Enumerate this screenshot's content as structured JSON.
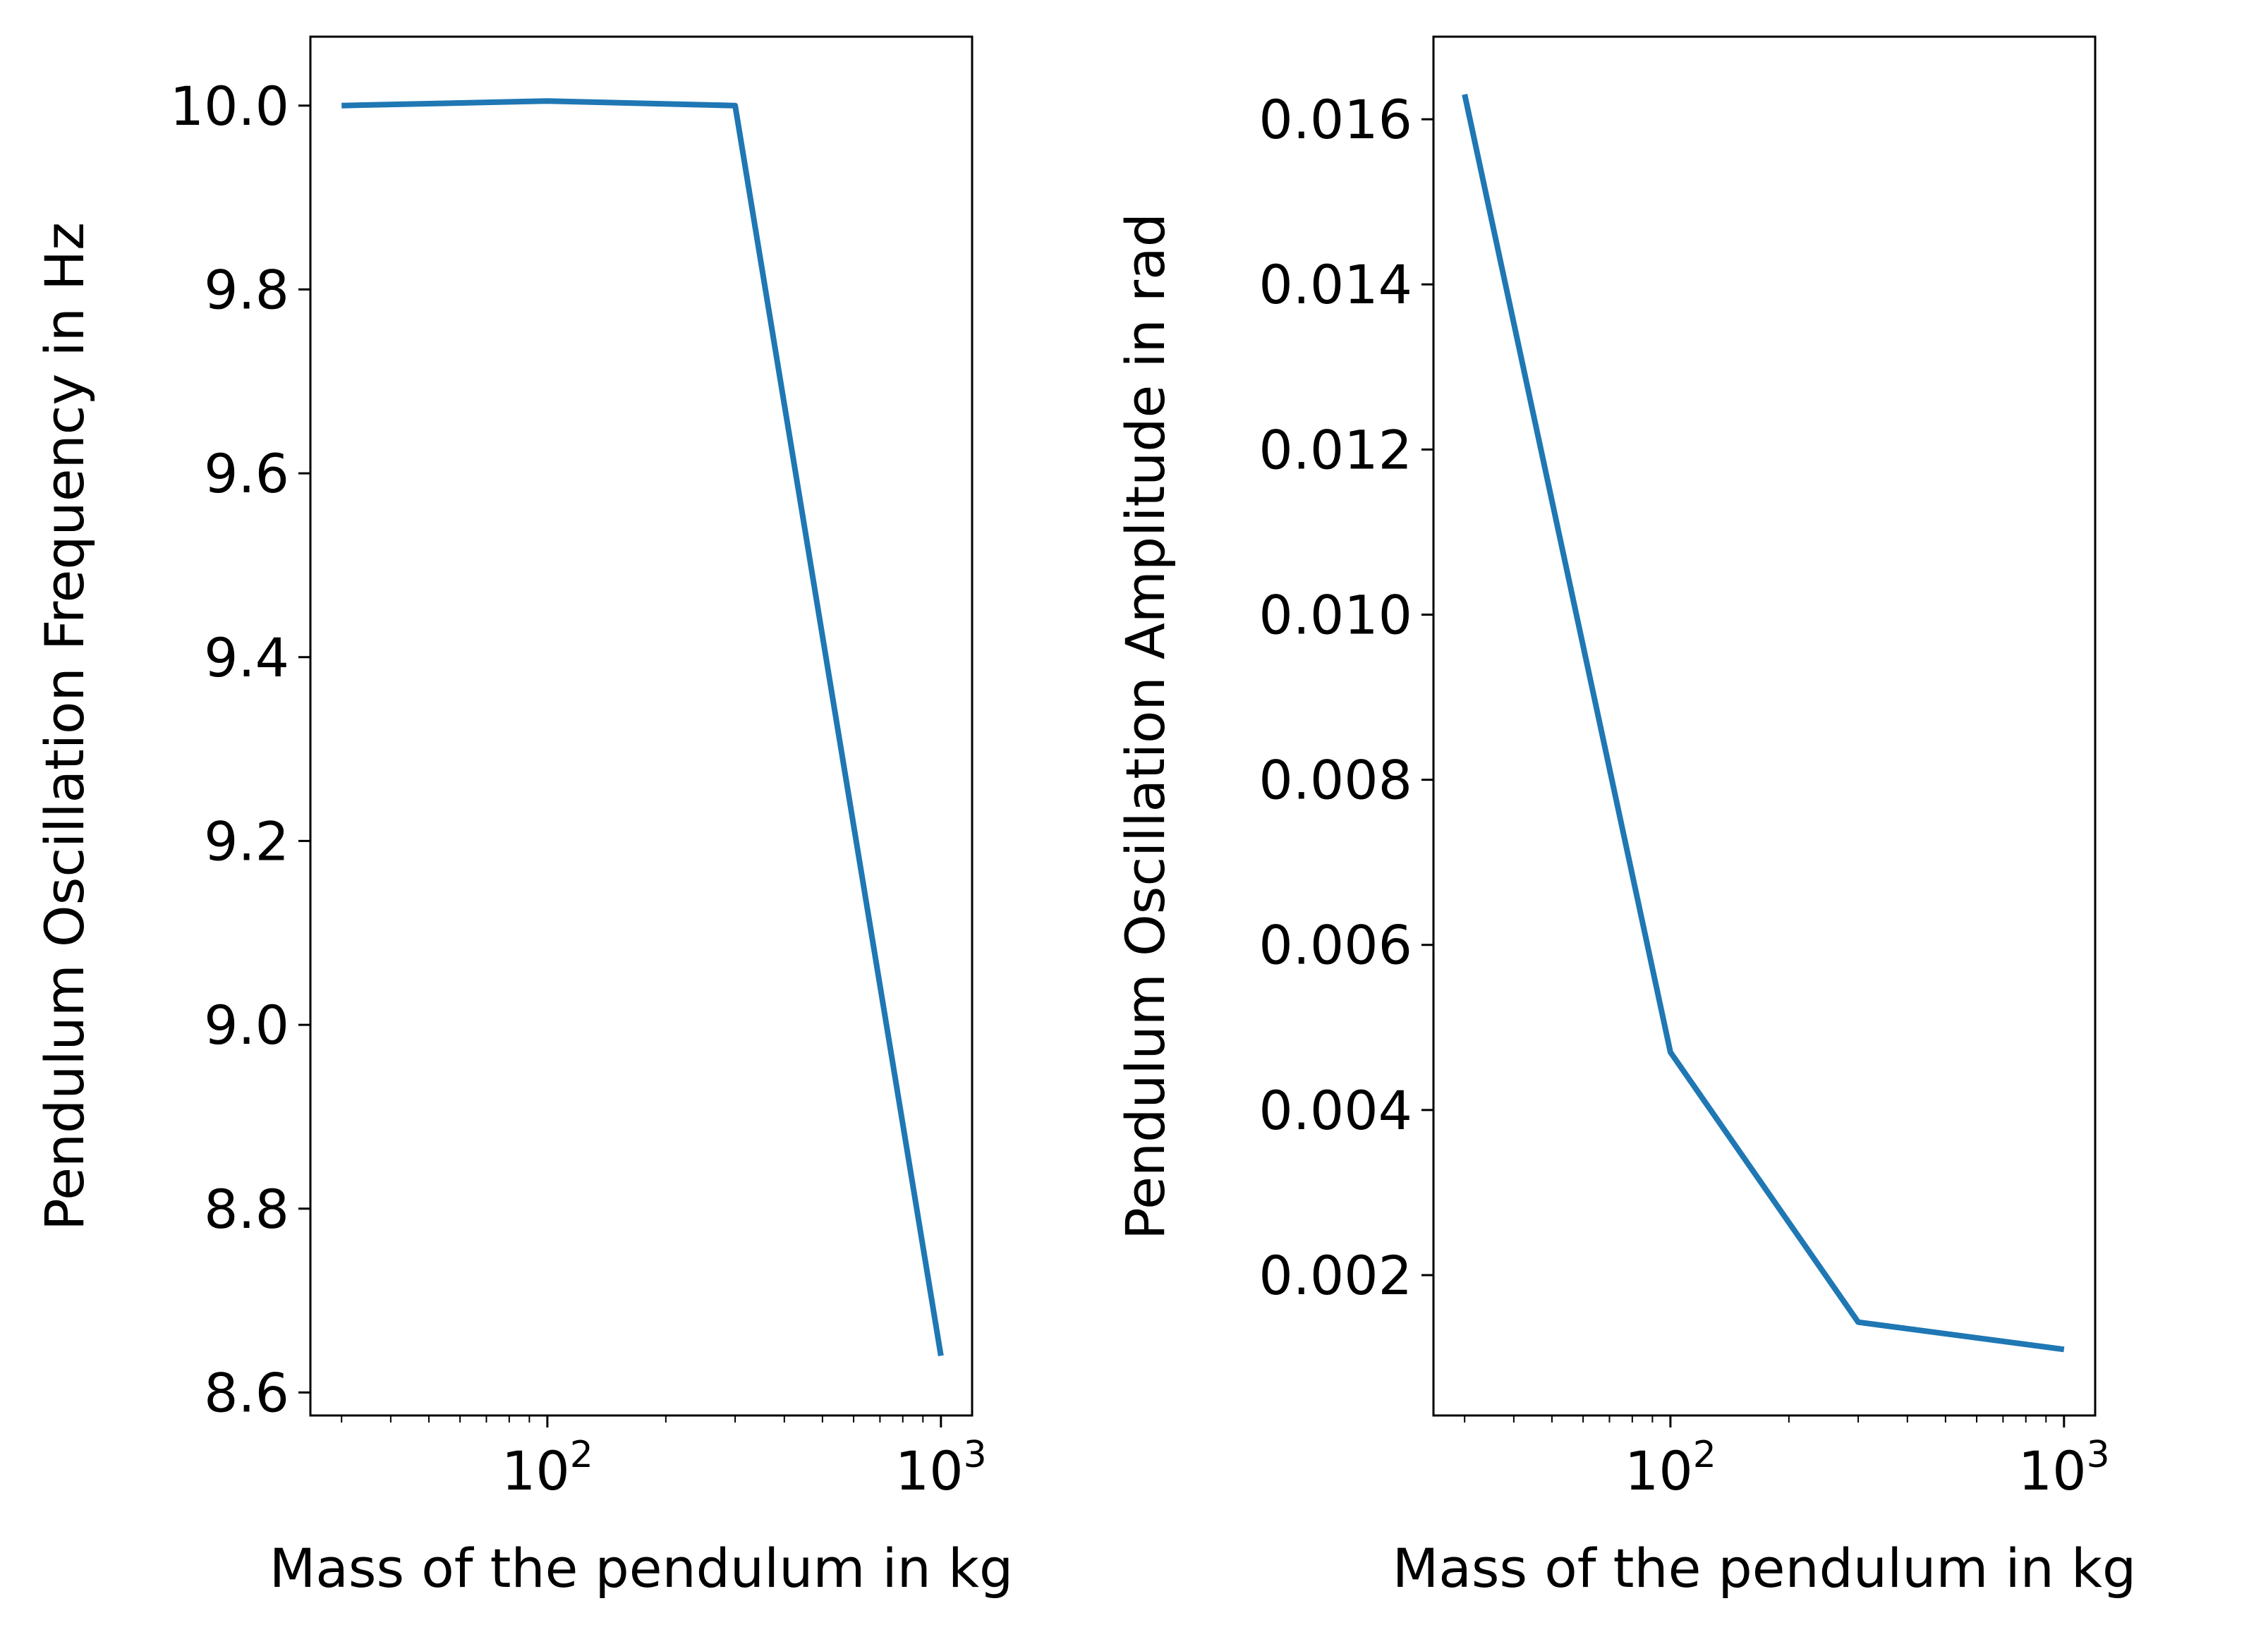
{
  "colors": {
    "line": "#1f77b4",
    "axes": "#000000",
    "background": "#ffffff"
  },
  "chart_data": [
    {
      "type": "line",
      "title": "",
      "xlabel": "Mass of the pendulum in kg",
      "ylabel": "Pendulum Oscillation Frequency in Hz",
      "xscale": "log",
      "xlim": [
        25,
        1200
      ],
      "ylim": [
        8.575,
        10.075
      ],
      "grid": false,
      "legend": "none",
      "x_tick_values": [
        100,
        1000
      ],
      "x_ticks": [
        {
          "base": "10",
          "exp": "2"
        },
        {
          "base": "10",
          "exp": "3"
        }
      ],
      "y_tick_values": [
        8.6,
        8.8,
        9.0,
        9.2,
        9.4,
        9.6,
        9.8,
        10.0
      ],
      "y_ticks": [
        "8.6",
        "8.8",
        "9.0",
        "9.2",
        "9.4",
        "9.6",
        "9.8",
        "10.0"
      ],
      "series": [
        {
          "x": [
            30,
            100,
            300,
            1000
          ],
          "y": [
            10.0,
            10.005,
            10.0,
            8.64
          ]
        }
      ]
    },
    {
      "type": "line",
      "title": "",
      "xlabel": "Mass of the pendulum in kg",
      "ylabel": "Pendulum Oscillation Amplitude in rad",
      "xscale": "log",
      "xlim": [
        25,
        1200
      ],
      "ylim": [
        0.0003,
        0.017
      ],
      "grid": false,
      "legend": "none",
      "x_tick_values": [
        100,
        1000
      ],
      "x_ticks": [
        {
          "base": "10",
          "exp": "2"
        },
        {
          "base": "10",
          "exp": "3"
        }
      ],
      "y_tick_values": [
        0.002,
        0.004,
        0.006,
        0.008,
        0.01,
        0.012,
        0.014,
        0.016
      ],
      "y_ticks": [
        "0.002",
        "0.004",
        "0.006",
        "0.008",
        "0.010",
        "0.012",
        "0.014",
        "0.016"
      ],
      "series": [
        {
          "x": [
            30,
            100,
            300,
            1000
          ],
          "y": [
            0.0163,
            0.0047,
            0.00143,
            0.0011
          ]
        }
      ]
    }
  ]
}
